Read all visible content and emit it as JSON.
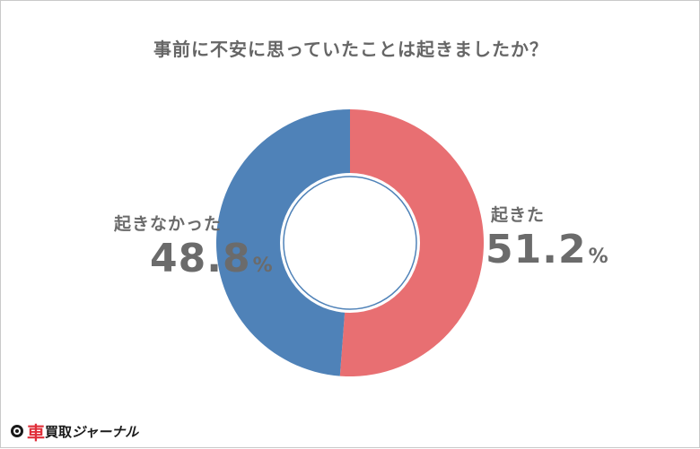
{
  "chart_data": {
    "type": "pie",
    "title": "事前に不安に思っていたことは起きましたか？",
    "slices": [
      {
        "label": "起きた",
        "value": 51.2,
        "display": "51.2",
        "color": "#e86f72"
      },
      {
        "label": "起きなかった",
        "value": 48.8,
        "display": "48.8",
        "color": "#4f82b8"
      }
    ],
    "unit": "%",
    "donut": true
  },
  "logo": {
    "car": "車",
    "buy_sell": "買取",
    "journal": "ジャーナル"
  }
}
